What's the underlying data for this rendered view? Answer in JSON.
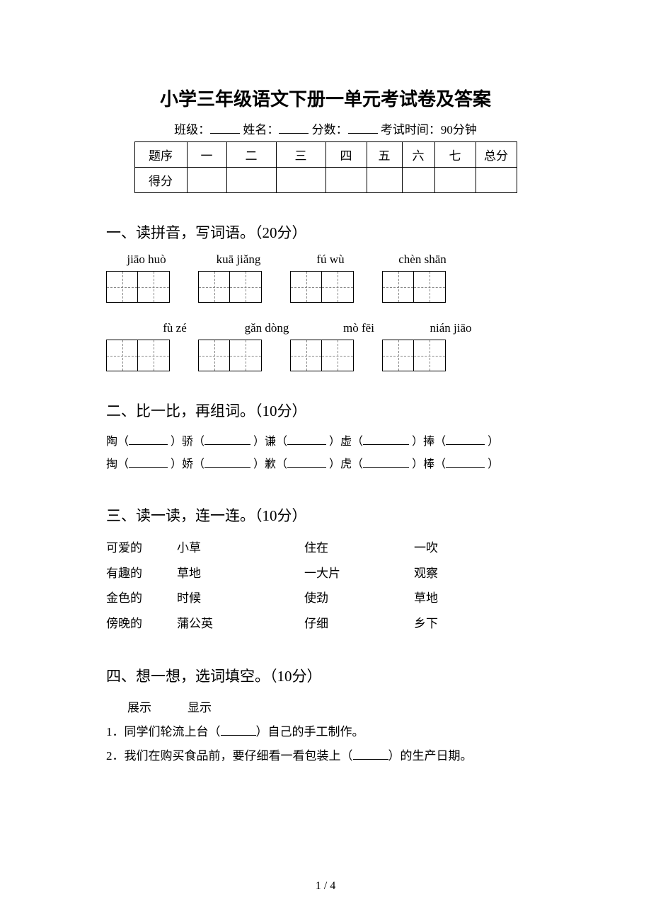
{
  "title": "小学三年级语文下册一单元考试卷及答案",
  "info": {
    "class_label": "班级：",
    "name_label": "姓名：",
    "score_label": "分数：",
    "time_label": "考试时间：90分钟"
  },
  "score_table": {
    "headers": [
      "题序",
      "一",
      "二",
      "三",
      "四",
      "五",
      "六",
      "七",
      "总分"
    ],
    "row_label": "得分"
  },
  "section1": {
    "heading": "一、读拼音，写词语。（20分）",
    "pinyin_row1": [
      "jiāo huò",
      "kuā jiǎng",
      "fú wù",
      "chèn shān"
    ],
    "pinyin_row2": [
      "fù zé",
      "gǎn dòng",
      "mò fēi",
      "nián jiāo"
    ]
  },
  "section2": {
    "heading": "二、比一比，再组词。（10分）",
    "line1": [
      "陶（",
      "）骄（",
      "）谦（",
      "）虚（",
      "）捧（",
      "）"
    ],
    "line2": [
      "掏（",
      "）娇（",
      "）歉（",
      "）虎（",
      "）棒（",
      "）"
    ]
  },
  "section3": {
    "heading": "三、读一读，连一连。（10分）",
    "rows": [
      [
        "可爱的",
        "小草",
        "住在",
        "一吹"
      ],
      [
        "有趣的",
        "草地",
        "一大片",
        "观察"
      ],
      [
        "金色的",
        "时候",
        "使劲",
        "草地"
      ],
      [
        "傍晚的",
        "蒲公英",
        "仔细",
        "乡下"
      ]
    ]
  },
  "section4": {
    "heading": "四、想一想，选词填空。（10分）",
    "word_choices": "展示　　　显示",
    "q1_a": "1．同学们轮流上台（",
    "q1_b": "）自己的手工制作。",
    "q2_a": "2．我们在购买食品前，要仔细看一看包装上（",
    "q2_b": "）的生产日期。"
  },
  "page_number": "1 / 4"
}
